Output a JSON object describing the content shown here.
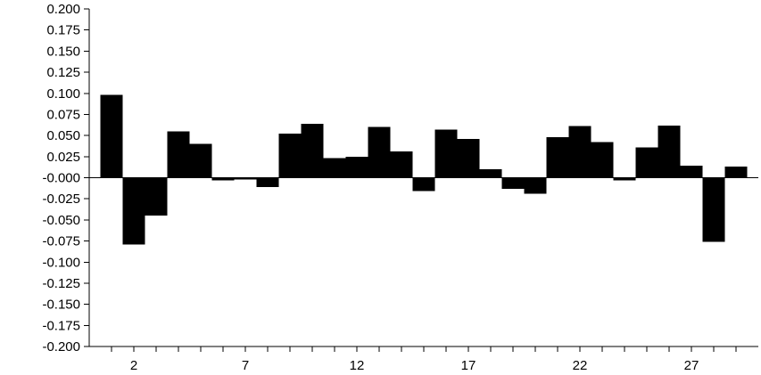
{
  "chart_data": {
    "type": "bar",
    "title": "",
    "xlabel": "",
    "ylabel": "",
    "x": [
      1,
      2,
      3,
      4,
      5,
      6,
      7,
      8,
      9,
      10,
      11,
      12,
      13,
      14,
      15,
      16,
      17,
      18,
      19,
      20,
      21,
      22,
      23,
      24,
      25,
      26,
      27,
      28,
      29
    ],
    "values": [
      0.098,
      -0.079,
      -0.045,
      0.055,
      0.04,
      -0.003,
      -0.002,
      -0.011,
      0.052,
      0.064,
      0.023,
      0.025,
      0.06,
      0.031,
      -0.016,
      0.057,
      0.046,
      0.01,
      -0.013,
      -0.019,
      0.048,
      0.061,
      0.042,
      -0.003,
      0.036,
      0.062,
      0.014,
      -0.076,
      0.013
    ],
    "xlim": [
      0,
      30
    ],
    "ylim": [
      -0.2,
      0.2
    ],
    "x_ticks": [
      "2",
      "7",
      "12",
      "17",
      "22",
      "27"
    ],
    "y_ticks": [
      "0.200",
      "0.175",
      "0.150",
      "0.125",
      "0.100",
      "0.075",
      "0.050",
      "0.025",
      "-0.000",
      "-0.025",
      "-0.050",
      "-0.075",
      "-0.100",
      "-0.125",
      "-0.150",
      "-0.175",
      "-0.200"
    ],
    "grid": false,
    "bar_color": "#000000"
  }
}
